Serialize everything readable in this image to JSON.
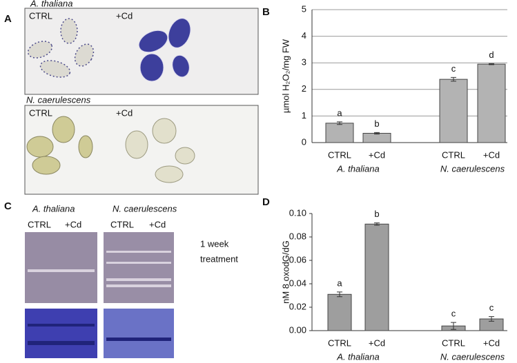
{
  "panel_a": {
    "label": "A",
    "species": [
      "A. thaliana",
      "N. caerulescens"
    ],
    "conditions": [
      "CTRL",
      "+Cd"
    ]
  },
  "panel_c": {
    "label": "C",
    "species": [
      "A. thaliana",
      "N. caerulescens"
    ],
    "conditions": [
      "CTRL",
      "+Cd"
    ],
    "note": [
      "1 week",
      "treatment"
    ]
  },
  "chart_data": [
    {
      "type": "bar",
      "label": "B",
      "ylabel": "µmol H₂O₂/mg FW",
      "categories": [
        "CTRL",
        "+Cd",
        "CTRL",
        "+Cd"
      ],
      "group_labels": [
        "A. thaliana",
        "N. caerulescens"
      ],
      "values": [
        0.73,
        0.35,
        2.38,
        2.95
      ],
      "errors": [
        0.05,
        0.03,
        0.07,
        0.02
      ],
      "annotations": [
        "a",
        "b",
        "c",
        "d"
      ],
      "color": "#b3b3b3",
      "ylim": [
        0,
        5
      ],
      "yticks": [
        0,
        1,
        2,
        3,
        4,
        5
      ],
      "grid": true
    },
    {
      "type": "bar",
      "label": "D",
      "ylabel": "nM 8 oxodG/dG",
      "categories": [
        "CTRL",
        "+Cd",
        "CTRL",
        "+Cd"
      ],
      "group_labels": [
        "A. thaliana",
        "N. caerulescens"
      ],
      "values": [
        0.031,
        0.091,
        0.004,
        0.01
      ],
      "errors": [
        0.002,
        0.001,
        0.003,
        0.002
      ],
      "annotations": [
        "a",
        "b",
        "c",
        "c"
      ],
      "color": "#9e9e9e",
      "ylim": [
        0,
        0.1
      ],
      "yticks": [
        {
          "value": 0,
          "label": "0.00"
        },
        {
          "value": 0.02,
          "label": "0.02"
        },
        {
          "value": 0.04,
          "label": "0.04"
        },
        {
          "value": 0.06,
          "label": "0.06"
        },
        {
          "value": 0.08,
          "label": "0.08"
        },
        {
          "value": 0.1,
          "label": "0.10"
        }
      ],
      "grid": false
    }
  ]
}
